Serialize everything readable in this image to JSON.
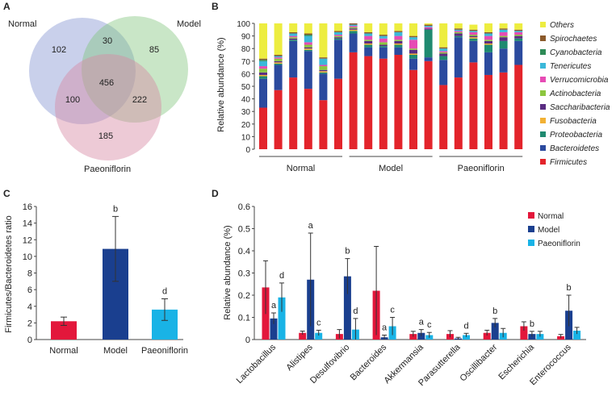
{
  "colors": {
    "normal": "#e3173b",
    "model": "#1a3f8f",
    "paeoniflorin": "#19b3e6",
    "axis": "#444444",
    "text": "#222222",
    "venn_normal": "#7f8fd0",
    "venn_model": "#7fc47a",
    "venn_paeo": "#d88aa4"
  },
  "chart_data": [
    {
      "panel": "A",
      "type": "venn",
      "sets": [
        "Normal",
        "Model",
        "Paeoniflorin"
      ],
      "regions": {
        "normal_only": 102,
        "model_only": 85,
        "paeo_only": 185,
        "normal_model": 30,
        "normal_paeo": 100,
        "model_paeo": 222,
        "all": 456
      }
    },
    {
      "panel": "B",
      "type": "bar",
      "stacked": true,
      "ylabel": "Relative abundance (%)",
      "ylim": [
        0,
        100
      ],
      "yticks": [
        0,
        10,
        20,
        30,
        40,
        50,
        60,
        70,
        80,
        90,
        100
      ],
      "groups": [
        {
          "name": "Normal",
          "start": 0,
          "count": 6
        },
        {
          "name": "Model",
          "start": 6,
          "count": 6
        },
        {
          "name": "Paeoniflorin",
          "start": 12,
          "count": 6
        }
      ],
      "series": [
        {
          "name": "Firmicutes",
          "color": "#e3242b",
          "values": [
            33,
            47,
            57,
            48,
            39,
            56,
            77,
            74,
            72,
            75,
            63,
            70,
            51,
            57,
            69,
            59,
            61,
            67
          ]
        },
        {
          "name": "Bacteroidetes",
          "color": "#2b4a9e",
          "values": [
            23,
            20,
            29,
            30,
            21,
            31,
            15,
            7,
            9,
            6,
            9,
            3,
            20,
            32,
            17,
            18,
            19,
            19
          ]
        },
        {
          "name": "Proteobacteria",
          "color": "#1f8a70",
          "values": [
            2,
            1,
            1,
            1,
            1,
            1,
            2,
            2,
            1,
            2,
            3,
            22,
            3,
            1,
            2,
            6,
            6,
            2
          ]
        },
        {
          "name": "Fusobacteria",
          "color": "#f2b134",
          "values": [
            1,
            1,
            0,
            1,
            1,
            0,
            1,
            1,
            0,
            1,
            1,
            0,
            0,
            0,
            1,
            1,
            0,
            0
          ]
        },
        {
          "name": "Saccharibacteria",
          "color": "#5a2d82",
          "values": [
            2,
            1,
            1,
            1,
            1,
            1,
            1,
            2,
            1,
            2,
            3,
            1,
            2,
            2,
            1,
            2,
            3,
            2
          ]
        },
        {
          "name": "Actinobacteria",
          "color": "#8cc63f",
          "values": [
            3,
            2,
            1,
            2,
            3,
            1,
            1,
            1,
            2,
            1,
            1,
            0,
            1,
            1,
            1,
            1,
            1,
            1
          ]
        },
        {
          "name": "Verrucomicrobia",
          "color": "#e64bb4",
          "values": [
            2,
            1,
            1,
            2,
            1,
            1,
            1,
            3,
            3,
            3,
            7,
            1,
            1,
            1,
            2,
            3,
            3,
            2
          ]
        },
        {
          "name": "Tenericutes",
          "color": "#3bb8d9",
          "values": [
            4,
            1,
            2,
            5,
            5,
            2,
            1,
            2,
            2,
            3,
            2,
            1,
            2,
            1,
            1,
            2,
            2,
            1
          ]
        },
        {
          "name": "Cyanobacteria",
          "color": "#2e8b57",
          "values": [
            1,
            0,
            0,
            1,
            0,
            0,
            0,
            0,
            0,
            0,
            0,
            0,
            0,
            0,
            0,
            0,
            0,
            0
          ]
        },
        {
          "name": "Spirochaetes",
          "color": "#8b5a2b",
          "values": [
            1,
            1,
            1,
            1,
            1,
            1,
            1,
            1,
            1,
            1,
            1,
            1,
            1,
            1,
            1,
            1,
            1,
            1
          ]
        },
        {
          "name": "Others",
          "color": "#eded40",
          "values": [
            28,
            25,
            7,
            8,
            27,
            6,
            0,
            7,
            9,
            6,
            10,
            1,
            19,
            4,
            4,
            7,
            4,
            5
          ]
        }
      ]
    },
    {
      "panel": "C",
      "type": "bar",
      "ylabel": "Firmicutes/Bacteroidetes ratio",
      "ylim": [
        0,
        16
      ],
      "yticks": [
        0,
        2,
        4,
        6,
        8,
        10,
        12,
        14,
        16
      ],
      "categories": [
        "Normal",
        "Model",
        "Paeoniflorin"
      ],
      "values": [
        2.2,
        10.9,
        3.6
      ],
      "errors": [
        0.5,
        3.9,
        1.3
      ],
      "labels": [
        "",
        "b",
        "d"
      ]
    },
    {
      "panel": "D",
      "type": "bar",
      "ylabel": "Relative abundance (%)",
      "ylim": [
        0,
        0.6
      ],
      "yticks": [
        "0",
        "0.1",
        "0.2",
        "0.3",
        "0.4",
        "0.5",
        "0.6"
      ],
      "categories": [
        "Lactobacillus",
        "Alistipes",
        "Desulfovibrio",
        "Bacteroides",
        "Akkermansia",
        "Parasutterella",
        "Oscillibacter",
        "Escherichia",
        "Enterococcus"
      ],
      "series": [
        {
          "name": "Normal",
          "values": [
            0.235,
            0.03,
            0.025,
            0.22,
            0.025,
            0.025,
            0.03,
            0.06,
            0.015
          ],
          "errors": [
            0.12,
            0.008,
            0.02,
            0.2,
            0.012,
            0.015,
            0.012,
            0.02,
            0.008
          ],
          "labels": [
            "",
            "",
            "",
            "",
            "",
            "",
            "",
            "",
            ""
          ]
        },
        {
          "name": "Model",
          "values": [
            0.095,
            0.27,
            0.285,
            0.01,
            0.03,
            0.005,
            0.075,
            0.025,
            0.13
          ],
          "errors": [
            0.025,
            0.21,
            0.08,
            0.01,
            0.015,
            0.005,
            0.02,
            0.012,
            0.07
          ],
          "labels": [
            "a",
            "a",
            "b",
            "a",
            "a",
            "",
            "b",
            "b",
            "b"
          ]
        },
        {
          "name": "Paeoniflorin",
          "values": [
            0.19,
            0.03,
            0.045,
            0.06,
            0.02,
            0.02,
            0.03,
            0.025,
            0.04
          ],
          "errors": [
            0.065,
            0.012,
            0.05,
            0.04,
            0.012,
            0.008,
            0.02,
            0.012,
            0.015
          ],
          "labels": [
            "d",
            "c",
            "d",
            "c",
            "c",
            "d",
            "",
            "",
            ""
          ]
        }
      ]
    }
  ]
}
